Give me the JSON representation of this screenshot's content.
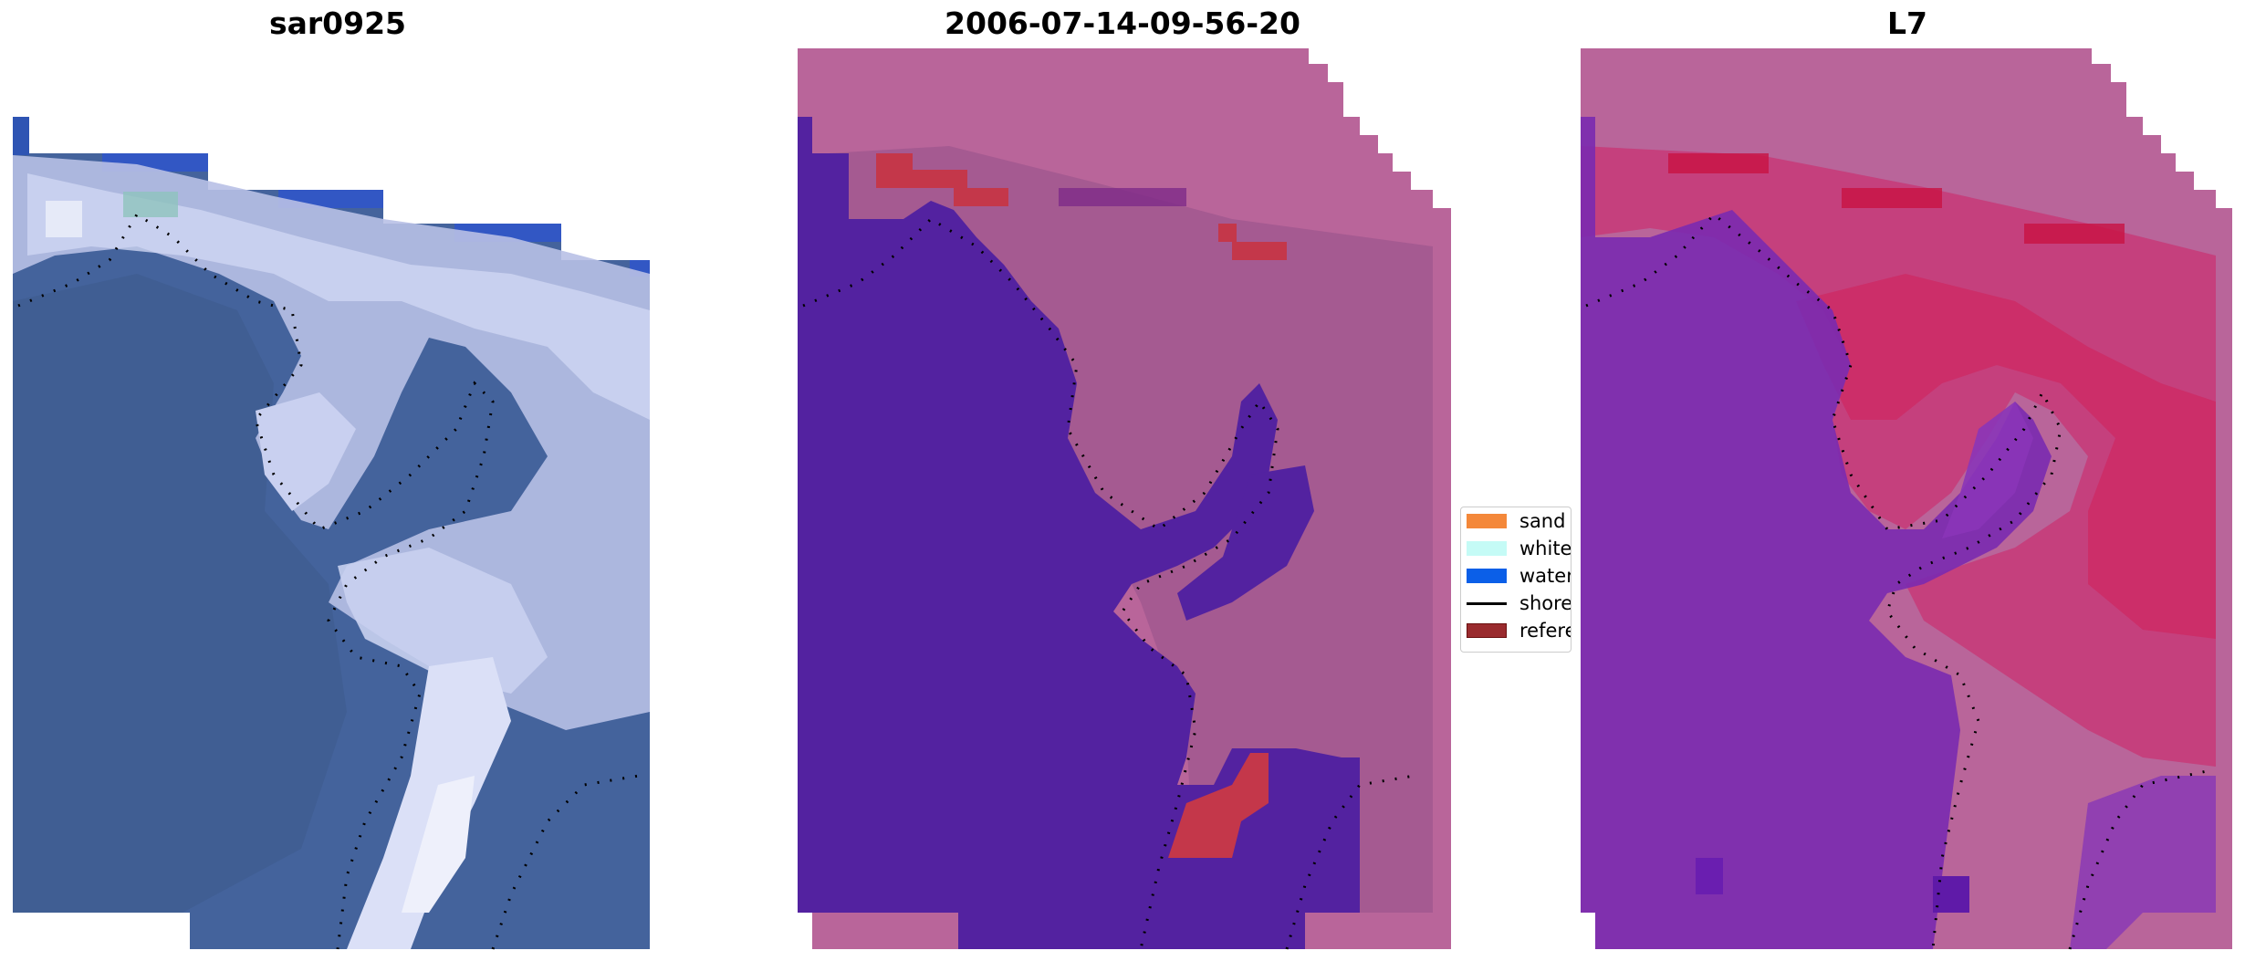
{
  "panels": [
    {
      "title": "sar0925"
    },
    {
      "title": "2006-07-14-09-56-20"
    },
    {
      "title": "L7"
    }
  ],
  "legend": {
    "items": [
      {
        "label": "sand",
        "color": "#f4883a"
      },
      {
        "label": "whitewater",
        "color": "#c5fbf6"
      },
      {
        "label": "water",
        "color": "#0b5fe8"
      },
      {
        "label": "shoreline",
        "color": "#000000"
      },
      {
        "label": "reference shoreline",
        "color": "#9a2b2e"
      }
    ]
  },
  "colors": {
    "rgb_water": "#42619a",
    "rgb_foam": "#c5cbec",
    "class_water": "#5322a0",
    "class_land": "#b9659a",
    "class_reference": "#c4374a",
    "ndwi_low": "#7a1fb0",
    "ndwi_high": "#d01848"
  }
}
